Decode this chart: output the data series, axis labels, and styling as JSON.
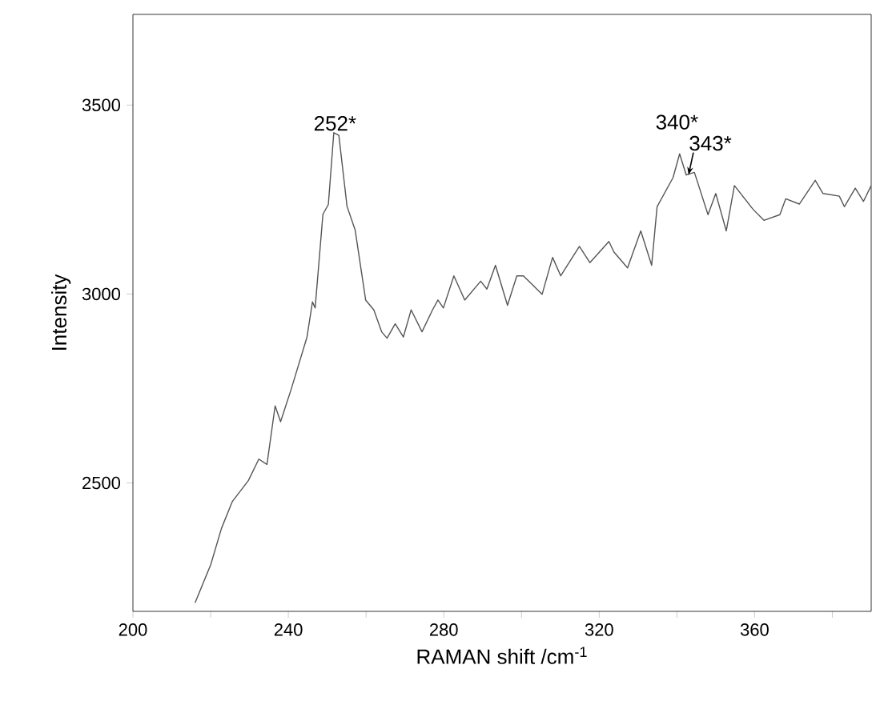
{
  "chart_data": {
    "type": "line",
    "xlabel": "RAMAN shift /cm$^{-1}$",
    "ylabel": "Intensity",
    "color": "#555555",
    "xlim": [
      200,
      390
    ],
    "ylim": [
      2160,
      3740
    ],
    "xticks": [
      200,
      {
        "value": 220,
        "label": null
      },
      240,
      {
        "value": 260,
        "label": null
      },
      280,
      {
        "value": 300,
        "label": null
      },
      320,
      {
        "value": 340,
        "label": null
      },
      360,
      {
        "value": 380,
        "label": null
      }
    ],
    "yticks": [
      2500,
      3000,
      3500
    ],
    "x": [
      216,
      220,
      222.8,
      225.6,
      229.7,
      232.4,
      234.5,
      236.6,
      238,
      240.7,
      244.8,
      246.2,
      246.9,
      248.9,
      250.3,
      251.7,
      253,
      255.1,
      257.2,
      259.9,
      262,
      264,
      265.4,
      267.5,
      269.6,
      271.6,
      274.4,
      277.1,
      278.5,
      279.9,
      282.6,
      285.4,
      289.5,
      291.1,
      293.3,
      296.4,
      298.8,
      300.5,
      305.3,
      308,
      310.1,
      314.9,
      317.6,
      322.5,
      323.8,
      327.3,
      330.7,
      333.5,
      334.9,
      339,
      340.7,
      342.4,
      344.5,
      348,
      350,
      352.7,
      354.8,
      359.6,
      362.4,
      366.5,
      368,
      371.5,
      375.6,
      377.6,
      381.8,
      383.1,
      385.9,
      388,
      390
    ],
    "values": [
      2183,
      2283,
      2380,
      2451,
      2506,
      2563,
      2549,
      2704,
      2662,
      2747,
      2886,
      2979,
      2963,
      3211,
      3237,
      3427,
      3420,
      3232,
      3169,
      2984,
      2958,
      2900,
      2883,
      2921,
      2886,
      2958,
      2900,
      2958,
      2984,
      2963,
      3048,
      2984,
      3034,
      3013,
      3076,
      2970,
      3048,
      3048,
      2999,
      3097,
      3048,
      3126,
      3083,
      3139,
      3111,
      3069,
      3167,
      3076,
      3231,
      3308,
      3371,
      3315,
      3322,
      3210,
      3266,
      3167,
      3287,
      3224,
      3195,
      3210,
      3252,
      3238,
      3301,
      3266,
      3259,
      3231,
      3280,
      3245,
      3287
    ],
    "annotations": [
      {
        "text": "252*",
        "x": 252,
        "y": 3427
      },
      {
        "text": "340*",
        "x": 340,
        "y": 3371
      },
      {
        "text": "343*",
        "x": 343,
        "y": 3315
      }
    ]
  }
}
